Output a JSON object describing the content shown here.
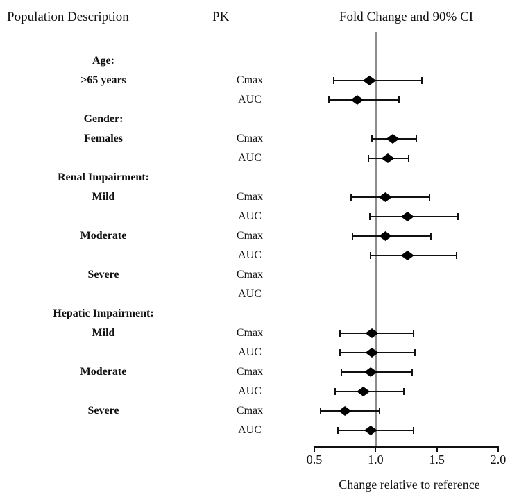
{
  "header": {
    "population": "Population Description",
    "pk": "PK",
    "plot": "Fold Change and 90% CI"
  },
  "axis": {
    "label": "Change relative to reference",
    "ticks": [
      "0.5",
      "1.0",
      "1.5",
      "2.0"
    ],
    "tick_values": [
      0.5,
      1.0,
      1.5,
      2.0
    ],
    "xlim": [
      0.5,
      2.0
    ],
    "reference_value": 1.0
  },
  "colors": {
    "marker": "#000000",
    "reference_line": "#8c8c8c",
    "text": "#111111"
  },
  "chart_data": {
    "type": "scatter",
    "subtype": "forest-plot",
    "title": "Fold Change and 90% CI",
    "xlabel": "Change relative to reference",
    "xlim": [
      0.5,
      2.0
    ],
    "reference_value": 1.0,
    "grid": false,
    "rows": [
      {
        "label": "Age:",
        "is_group": true
      },
      {
        "label": ">65 years",
        "pk": "Cmax",
        "est": 0.95,
        "lo": 0.66,
        "hi": 1.38
      },
      {
        "label": "",
        "pk": "AUC",
        "est": 0.85,
        "lo": 0.62,
        "hi": 1.19
      },
      {
        "label": "Gender:",
        "is_group": true
      },
      {
        "label": "Females",
        "pk": "Cmax",
        "est": 1.14,
        "lo": 0.97,
        "hi": 1.33
      },
      {
        "label": "",
        "pk": "AUC",
        "est": 1.1,
        "lo": 0.94,
        "hi": 1.27
      },
      {
        "label": "Renal Impairment:",
        "is_group": true
      },
      {
        "label": "Mild",
        "pk": "Cmax",
        "est": 1.08,
        "lo": 0.8,
        "hi": 1.44
      },
      {
        "label": "",
        "pk": "AUC",
        "est": 1.26,
        "lo": 0.95,
        "hi": 1.67
      },
      {
        "label": "Moderate",
        "pk": "Cmax",
        "est": 1.08,
        "lo": 0.81,
        "hi": 1.45
      },
      {
        "label": "",
        "pk": "AUC",
        "est": 1.26,
        "lo": 0.96,
        "hi": 1.66
      },
      {
        "label": "Severe",
        "pk": "Cmax",
        "est": null,
        "lo": null,
        "hi": null
      },
      {
        "label": "",
        "pk": "AUC",
        "est": null,
        "lo": null,
        "hi": null
      },
      {
        "label": "Hepatic Impairment:",
        "is_group": true
      },
      {
        "label": "Mild",
        "pk": "Cmax",
        "est": 0.97,
        "lo": 0.71,
        "hi": 1.31
      },
      {
        "label": "",
        "pk": "AUC",
        "est": 0.97,
        "lo": 0.71,
        "hi": 1.32
      },
      {
        "label": "Moderate",
        "pk": "Cmax",
        "est": 0.96,
        "lo": 0.72,
        "hi": 1.3
      },
      {
        "label": "",
        "pk": "AUC",
        "est": 0.9,
        "lo": 0.67,
        "hi": 1.23
      },
      {
        "label": "Severe",
        "pk": "Cmax",
        "est": 0.75,
        "lo": 0.55,
        "hi": 1.03
      },
      {
        "label": "",
        "pk": "AUC",
        "est": 0.96,
        "lo": 0.69,
        "hi": 1.31
      }
    ]
  }
}
